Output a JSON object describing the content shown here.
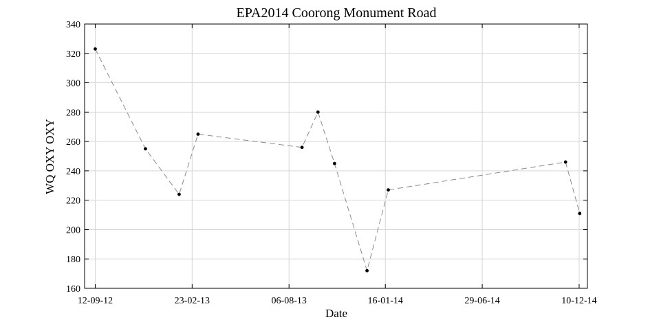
{
  "chart_data": {
    "type": "line",
    "title": "EPA2014 Coorong Monument Road",
    "xlabel": "Date",
    "ylabel": "WQ OXY OXY",
    "xticks": [
      "2012-09-12",
      "2013-02-23",
      "2013-08-06",
      "2014-01-16",
      "2014-06-29",
      "2014-12-10"
    ],
    "xtick_labels": [
      "12-09-12",
      "23-02-13",
      "06-08-13",
      "16-01-14",
      "29-06-14",
      "10-12-14"
    ],
    "xlim": [
      "2012-08-25",
      "2014-12-24"
    ],
    "yticks": [
      160,
      180,
      200,
      220,
      240,
      260,
      280,
      300,
      320,
      340
    ],
    "ylim": [
      160,
      340
    ],
    "grid": true,
    "line_style": "dashed",
    "line_color": "#8a8a8a",
    "marker_color": "#000000",
    "points": [
      {
        "x": "2012-09-12",
        "y": 323
      },
      {
        "x": "2012-12-06",
        "y": 255
      },
      {
        "x": "2013-02-01",
        "y": 224
      },
      {
        "x": "2013-03-05",
        "y": 265
      },
      {
        "x": "2013-08-28",
        "y": 256
      },
      {
        "x": "2013-09-24",
        "y": 280
      },
      {
        "x": "2013-10-22",
        "y": 245
      },
      {
        "x": "2013-12-16",
        "y": 172
      },
      {
        "x": "2014-01-21",
        "y": 227
      },
      {
        "x": "2014-11-17",
        "y": 246
      },
      {
        "x": "2014-12-11",
        "y": 211
      }
    ]
  }
}
